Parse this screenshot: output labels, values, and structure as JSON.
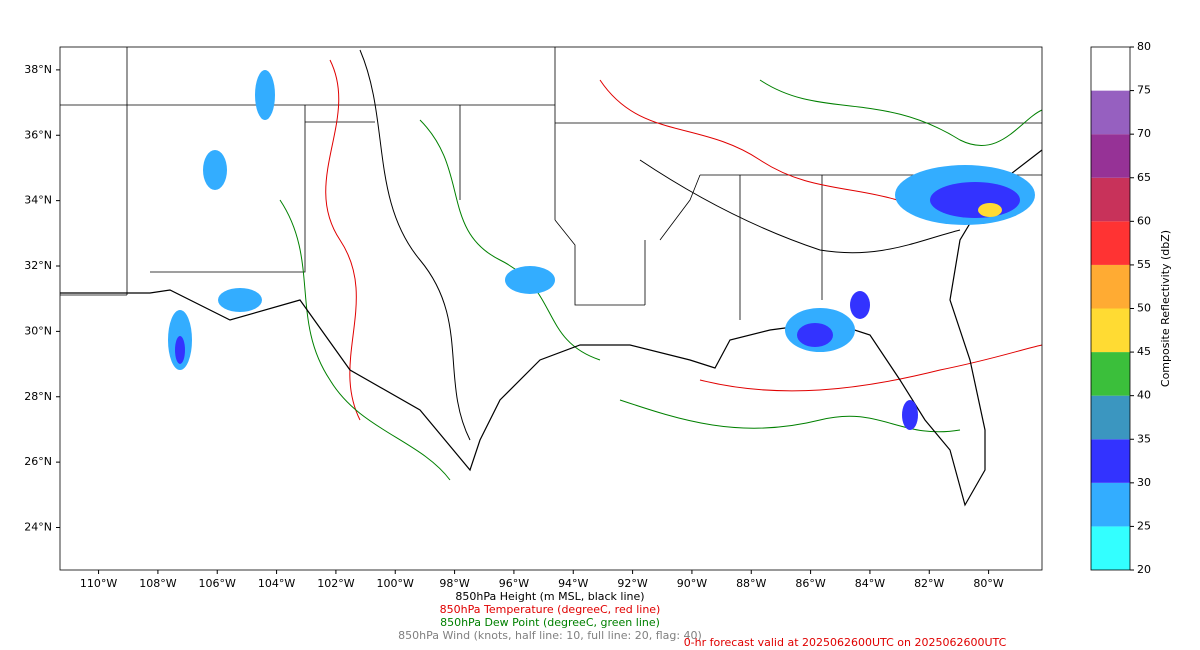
{
  "map": {
    "xlim": [
      -111.3,
      -78.2
    ],
    "ylim": [
      22.7,
      38.7
    ],
    "lat_ticks": [
      {
        "value": 38,
        "label": "38°N"
      },
      {
        "value": 36,
        "label": "36°N"
      },
      {
        "value": 34,
        "label": "34°N"
      },
      {
        "value": 32,
        "label": "32°N"
      },
      {
        "value": 30,
        "label": "30°N"
      },
      {
        "value": 28,
        "label": "28°N"
      },
      {
        "value": 26,
        "label": "26°N"
      },
      {
        "value": 24,
        "label": "24°N"
      }
    ],
    "lon_ticks": [
      {
        "value": -110,
        "label": "110°W"
      },
      {
        "value": -108,
        "label": "108°W"
      },
      {
        "value": -106,
        "label": "106°W"
      },
      {
        "value": -104,
        "label": "104°W"
      },
      {
        "value": -102,
        "label": "102°W"
      },
      {
        "value": -100,
        "label": "100°W"
      },
      {
        "value": -98,
        "label": "98°W"
      },
      {
        "value": -96,
        "label": "96°W"
      },
      {
        "value": -94,
        "label": "94°W"
      },
      {
        "value": -92,
        "label": "92°W"
      },
      {
        "value": -90,
        "label": "90°W"
      },
      {
        "value": -88,
        "label": "88°W"
      },
      {
        "value": -86,
        "label": "86°W"
      },
      {
        "value": -84,
        "label": "84°W"
      },
      {
        "value": -82,
        "label": "82°W"
      },
      {
        "value": -80,
        "label": "80°W"
      }
    ]
  },
  "colorbar": {
    "label": "Composite Reflectivity (dbZ)",
    "range": [
      20,
      80
    ],
    "ticks": [
      20,
      25,
      30,
      35,
      40,
      45,
      50,
      55,
      60,
      65,
      70,
      75,
      80
    ],
    "colors": [
      "#33ffff",
      "#33adff",
      "#3333ff",
      "#3b96c0",
      "#3bbf3b",
      "#ffdb33",
      "#ffab33",
      "#ff3333",
      "#c8325a",
      "#963296",
      "#9660c0",
      "#ffffff"
    ]
  },
  "captions": [
    {
      "text": "850hPa Height (m MSL, black line)",
      "color": "#000000"
    },
    {
      "text": "850hPa Temperature (degreeC, red line)",
      "color": "#e00000"
    },
    {
      "text": "850hPa Dew Point (degreeC, green line)",
      "color": "#008000"
    },
    {
      "text": "850hPa Wind (knots, half line: 10, full line: 20, flag: 40)",
      "color": "#808080"
    }
  ],
  "valid_text": {
    "text": "0-hr forecast valid at 2025062600UTC on 2025062600UTC",
    "color": "#e00000"
  }
}
